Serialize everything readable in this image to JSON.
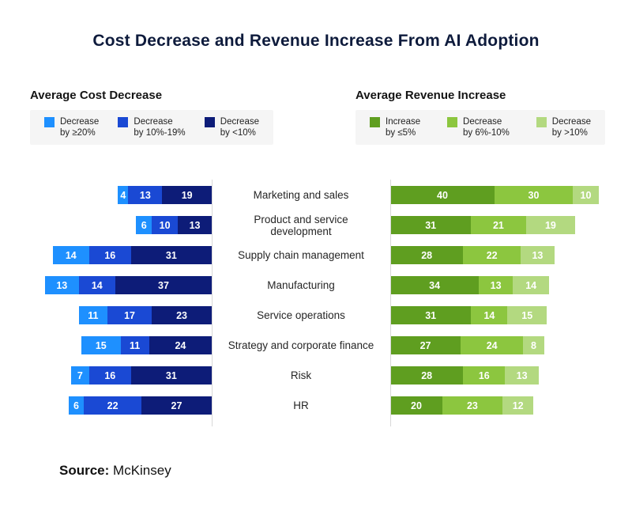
{
  "title": "Cost Decrease and Revenue Increase From AI Adoption",
  "left_panel": {
    "heading": "Average Cost Decrease",
    "legend": [
      {
        "line1": "Decrease",
        "line2": "by ≥20%"
      },
      {
        "line1": "Decrease",
        "line2": "by 10%-19%"
      },
      {
        "line1": "Decrease",
        "line2": "by <10%"
      }
    ]
  },
  "right_panel": {
    "heading": "Average Revenue Increase",
    "legend": [
      {
        "line1": "Increase",
        "line2": "by ≤5%"
      },
      {
        "line1": "Decrease",
        "line2": "by 6%-10%"
      },
      {
        "line1": "Decrease",
        "line2": "by >10%"
      }
    ]
  },
  "source": {
    "label": "Source:",
    "value": "McKinsey"
  },
  "chart_data": {
    "type": "bar",
    "subtype": "diverging-stacked-horizontal",
    "categories": [
      "Marketing and sales",
      "Product and service\ndevelopment",
      "Supply chain management",
      "Manufacturing",
      "Service operations",
      "Strategy and corporate finance",
      "Risk",
      "HR"
    ],
    "left": {
      "title": "Average Cost Decrease",
      "series_labels": [
        "Decrease by ≥20%",
        "Decrease by 10%-19%",
        "Decrease by <10%"
      ],
      "colors": [
        "#1e90ff",
        "#1a49d4",
        "#0d1c78"
      ],
      "values": [
        [
          4,
          13,
          19
        ],
        [
          6,
          10,
          13
        ],
        [
          14,
          16,
          31
        ],
        [
          13,
          14,
          37
        ],
        [
          11,
          17,
          23
        ],
        [
          15,
          11,
          24
        ],
        [
          7,
          16,
          31
        ],
        [
          6,
          22,
          27
        ]
      ]
    },
    "right": {
      "title": "Average Revenue Increase",
      "series_labels": [
        "Increase by ≤5%",
        "Decrease by 6%-10%",
        "Decrease by >10%"
      ],
      "colors": [
        "#5f9e20",
        "#8cc63f",
        "#b3d980"
      ],
      "values": [
        [
          40,
          30,
          10
        ],
        [
          31,
          21,
          19
        ],
        [
          28,
          22,
          13
        ],
        [
          34,
          13,
          14
        ],
        [
          31,
          14,
          15
        ],
        [
          27,
          24,
          8
        ],
        [
          28,
          16,
          13
        ],
        [
          20,
          23,
          12
        ]
      ]
    },
    "value_labels_shown": true,
    "legend_position": "top",
    "grid": false
  }
}
